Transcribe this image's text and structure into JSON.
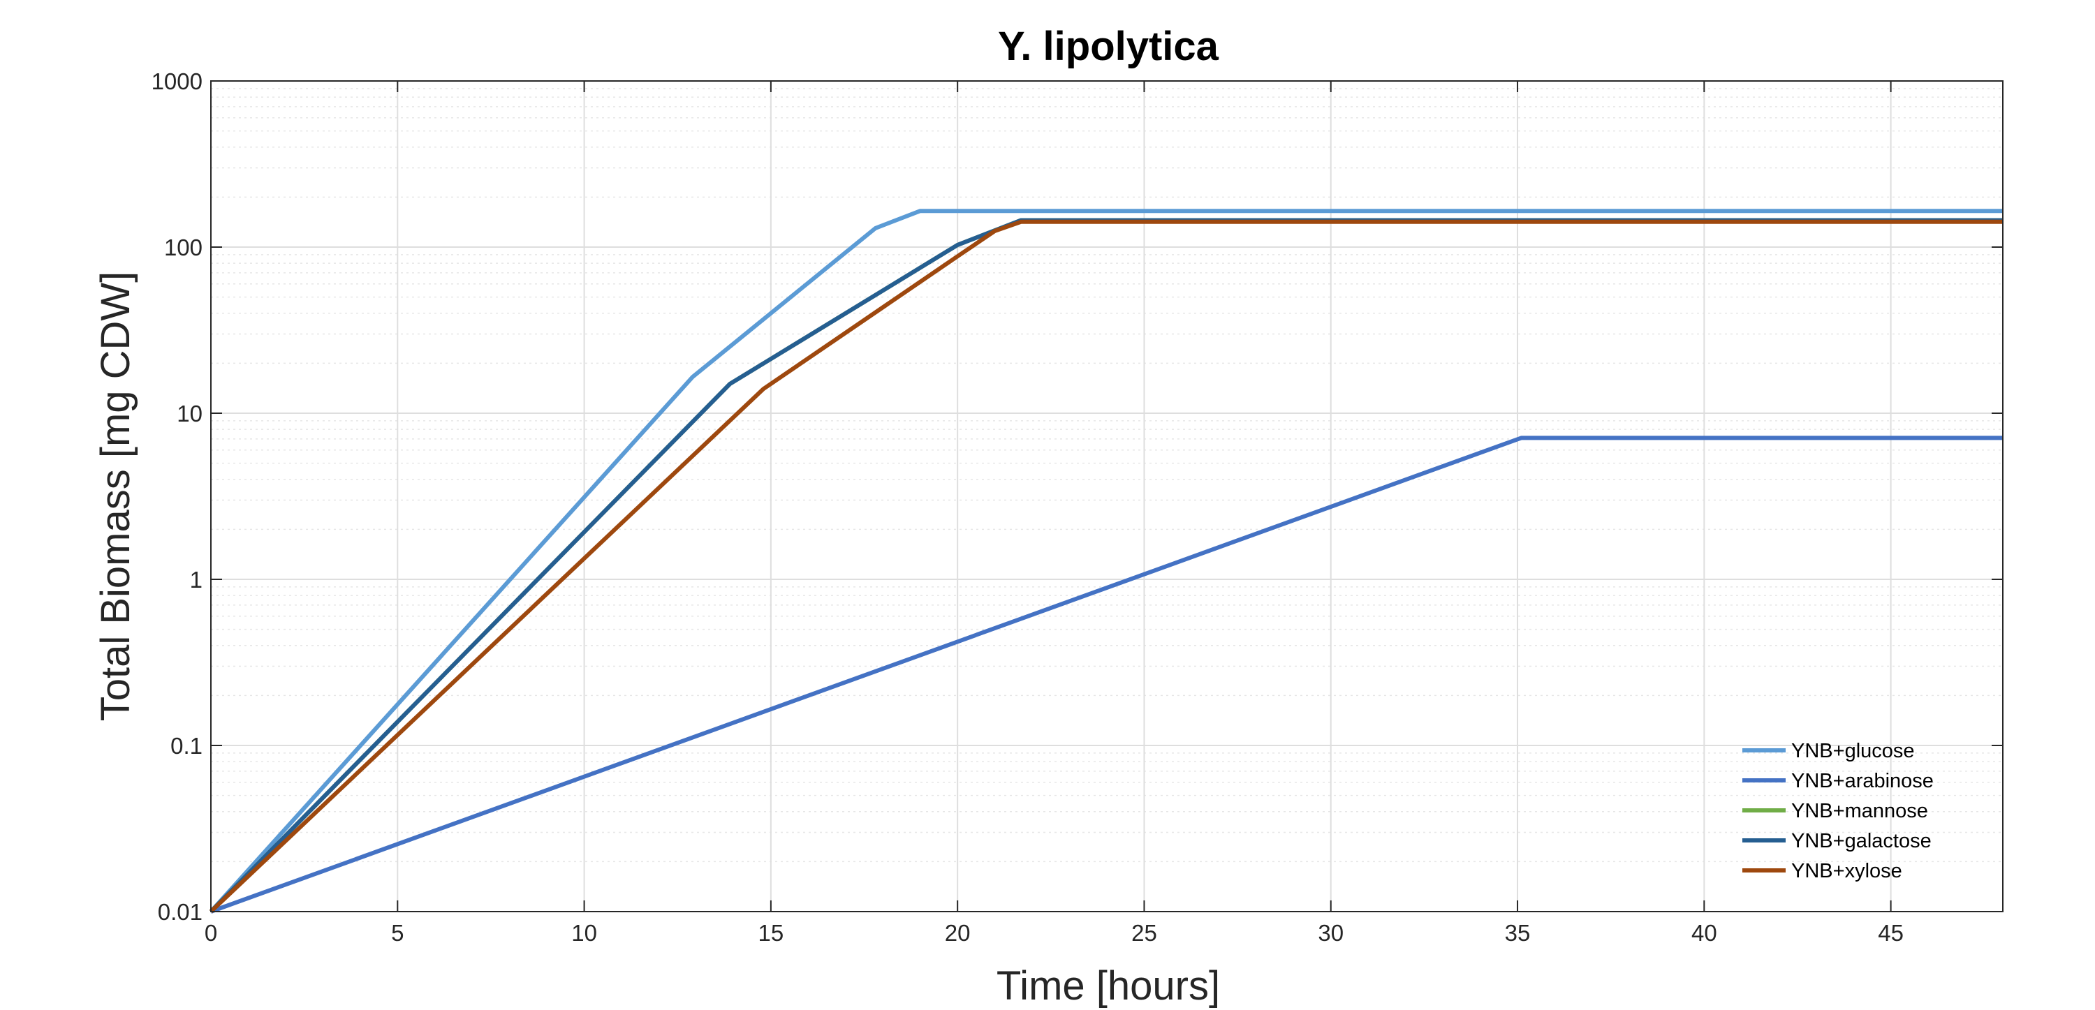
{
  "chart_data": {
    "type": "line",
    "title": "Y. lipolytica",
    "xlabel": "Time [hours]",
    "ylabel": "Total Biomass [mg CDW]",
    "xlim": [
      0,
      48
    ],
    "ylim": [
      0.01,
      1000
    ],
    "yscale": "log",
    "x_ticks": [
      0,
      5,
      10,
      15,
      20,
      25,
      30,
      35,
      40,
      45
    ],
    "x_tick_labels": [
      "0",
      "5",
      "10",
      "15",
      "20",
      "25",
      "30",
      "35",
      "40",
      "45"
    ],
    "y_ticks": [
      0.01,
      0.1,
      1,
      10,
      100,
      1000
    ],
    "y_tick_labels": [
      "0.01",
      "0.1",
      "1",
      "10",
      "100",
      "1000"
    ],
    "grid": true,
    "minor_grid": true,
    "legend_position": "bottom-right",
    "series": [
      {
        "name": "YNB+glucose",
        "color": "#5b9bd5",
        "points": [
          [
            0,
            0.01
          ],
          [
            12.9,
            16.5
          ],
          [
            17.8,
            130
          ],
          [
            19.0,
            165
          ],
          [
            48,
            165
          ]
        ]
      },
      {
        "name": "YNB+arabinose",
        "color": "#4472c4",
        "points": [
          [
            0,
            0.01
          ],
          [
            35.1,
            7.1
          ],
          [
            48,
            7.1
          ]
        ]
      },
      {
        "name": "YNB+mannose",
        "color": "#70ad47",
        "points": [
          [
            0,
            0.01
          ],
          [
            13.9,
            15
          ],
          [
            20.0,
            103
          ],
          [
            21.7,
            145
          ],
          [
            48,
            145
          ]
        ]
      },
      {
        "name": "YNB+galactose",
        "color": "#255e91",
        "points": [
          [
            0,
            0.01
          ],
          [
            13.9,
            15
          ],
          [
            20.0,
            103
          ],
          [
            21.7,
            145
          ],
          [
            48,
            145
          ]
        ]
      },
      {
        "name": "YNB+xylose",
        "color": "#9e480e",
        "points": [
          [
            0,
            0.01
          ],
          [
            14.8,
            14
          ],
          [
            20.0,
            88
          ],
          [
            21.0,
            125
          ],
          [
            21.7,
            142
          ],
          [
            48,
            142
          ]
        ]
      }
    ]
  }
}
